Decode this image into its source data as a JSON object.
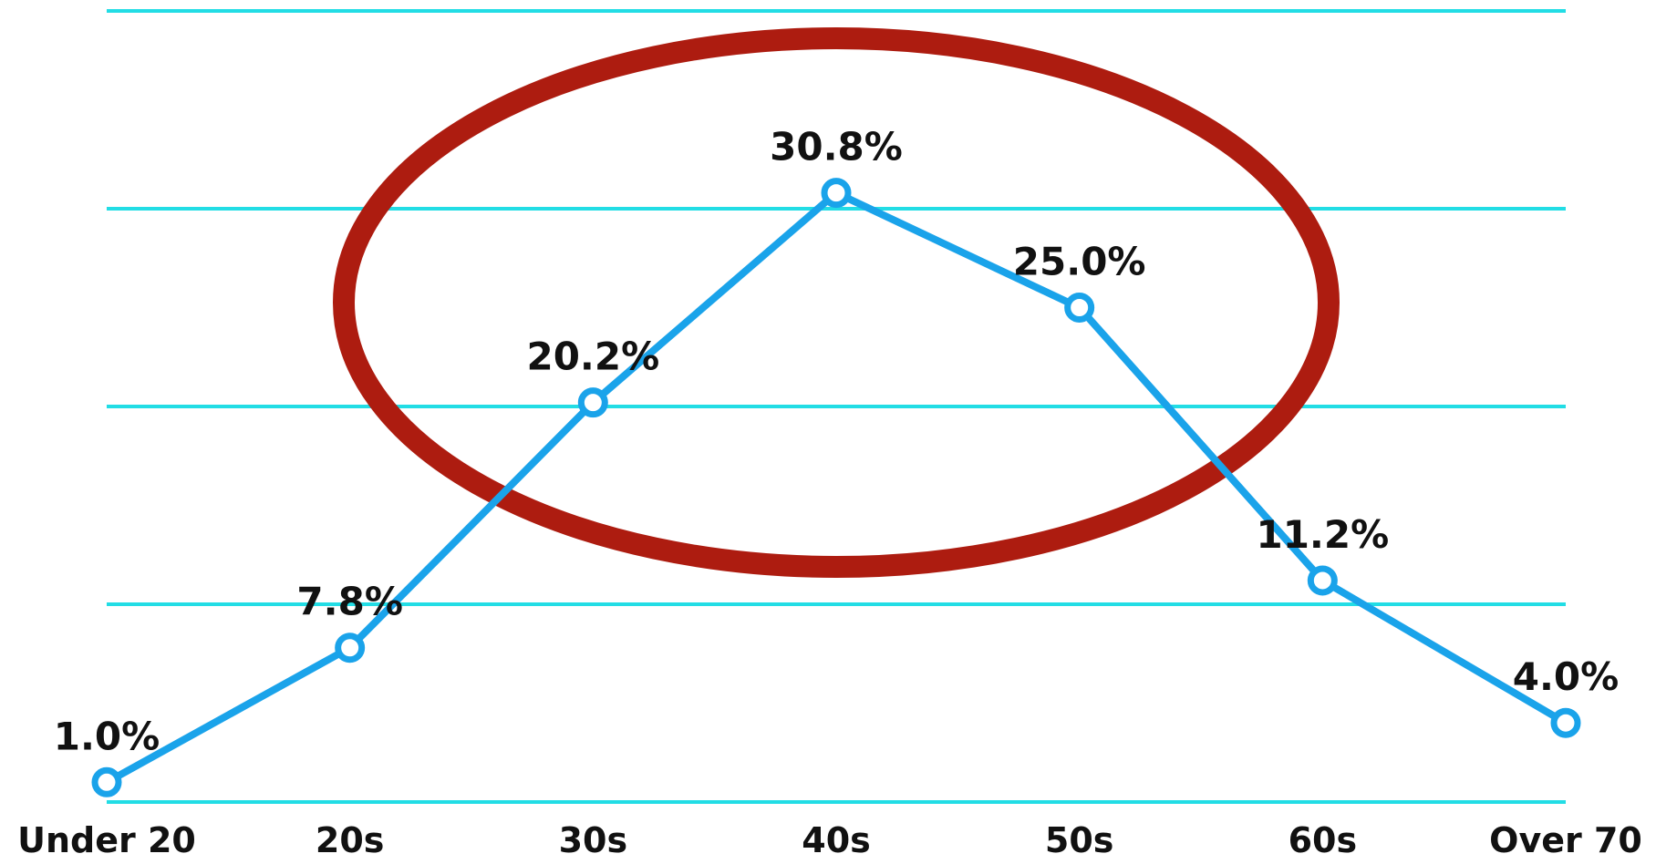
{
  "chart_data": {
    "type": "line",
    "categories": [
      "Under 20",
      "20s",
      "30s",
      "40s",
      "50s",
      "60s",
      "Over 70"
    ],
    "series": [
      {
        "values": [
          1.0,
          7.8,
          20.2,
          30.8,
          25.0,
          11.2,
          4.0
        ],
        "labels": [
          "1.0%",
          "7.8%",
          "20.2%",
          "30.8%",
          "25.0%",
          "11.2%",
          "4.0%"
        ]
      }
    ],
    "ylim": [
      0,
      40
    ],
    "grid": true,
    "legend": "none",
    "colors": {
      "line": "#1aa3ea",
      "grid": "#22dde5",
      "highlight_ellipse": "#ad1c10"
    },
    "annotations": [
      {
        "type": "ellipse",
        "encloses": [
          "30s",
          "40s",
          "50s"
        ]
      }
    ]
  }
}
